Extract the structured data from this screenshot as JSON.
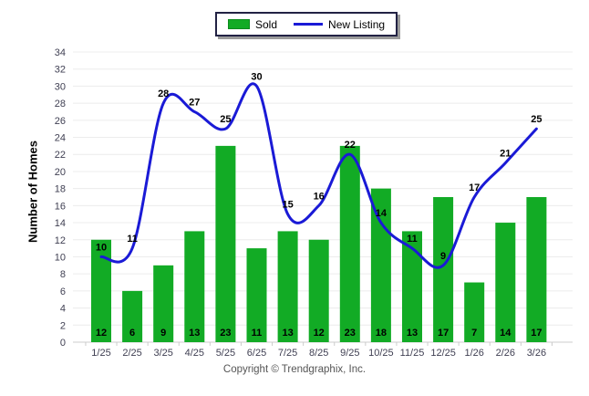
{
  "legend": {
    "items": [
      {
        "label": "Sold",
        "type": "bar",
        "color": "#12AB25"
      },
      {
        "label": "New Listing",
        "type": "line",
        "color": "#1A1AD6"
      }
    ]
  },
  "footer": {
    "copyright": "Copyright © Trendgraphix, Inc."
  },
  "chart_data": {
    "type": "bar",
    "subtype": "bar+line combo",
    "categories": [
      "1/25",
      "2/25",
      "3/25",
      "4/25",
      "5/25",
      "6/25",
      "7/25",
      "8/25",
      "9/25",
      "10/25",
      "11/25",
      "12/25",
      "1/26",
      "2/26",
      "3/26"
    ],
    "series": [
      {
        "name": "Sold",
        "type": "bar",
        "color": "#12AB25",
        "values": [
          12,
          6,
          9,
          13,
          23,
          11,
          13,
          12,
          23,
          18,
          13,
          17,
          7,
          14,
          17
        ]
      },
      {
        "name": "New Listing",
        "type": "line",
        "color": "#1A1AD6",
        "values": [
          10,
          11,
          28,
          27,
          25,
          30,
          15,
          16,
          22,
          14,
          11,
          9,
          17,
          21,
          25
        ]
      }
    ],
    "title": "",
    "xlabel": "",
    "ylabel": "Number of Homes",
    "ylim": [
      0,
      34
    ],
    "ytick_step": 2,
    "grid": true,
    "gridline_color": "#ECECEC",
    "axis_line_color": "#CCCCCC",
    "tick_label_color": "#3F3F52",
    "data_label_color": "#000000",
    "legend_position": "top-center"
  }
}
